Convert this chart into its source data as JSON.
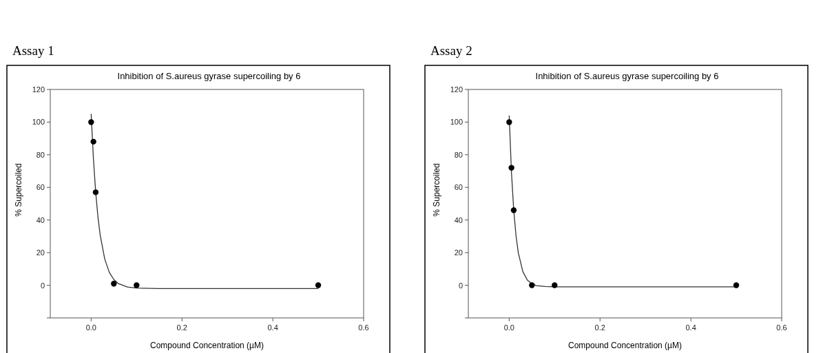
{
  "chart_data": [
    {
      "type": "scatter",
      "title": "Inhibition of S.aureus gyrase supercoiling by 6",
      "xlabel": "Compound Concentration (µM)",
      "ylabel": "% Supercoiled",
      "annotations": [
        "Assay 1"
      ],
      "xlim": [
        -0.09,
        0.6
      ],
      "xticks": [
        {
          "value": 0,
          "label": "0.0"
        },
        {
          "value": 0.2,
          "label": "0.2"
        },
        {
          "value": 0.4,
          "label": "0.4"
        },
        {
          "value": 0.6,
          "label": "0.6"
        }
      ],
      "ylim": [
        -20,
        120
      ],
      "yticks": [
        {
          "value": -20,
          "label": null
        },
        0,
        20,
        40,
        60,
        80,
        100,
        120
      ],
      "grid": false,
      "series": [
        {
          "type": "line",
          "color": "#333333",
          "line_style": "solid",
          "x": [
            0,
            0.005,
            0.01,
            0.015,
            0.02,
            0.03,
            0.04,
            0.05,
            0.06,
            0.08,
            0.1,
            0.15,
            0.2,
            0.3,
            0.5
          ],
          "values": [
            105,
            77.5,
            57,
            41.8,
            30.6,
            16,
            7.9,
            3.5,
            1,
            -1.1,
            -1.7,
            -2,
            -2,
            -2,
            -2
          ]
        },
        {
          "color": "#000000",
          "marker": "circle",
          "x": [
            0,
            0.005,
            0.01,
            0.05,
            0.1,
            0.5
          ],
          "values": [
            100,
            88,
            57,
            1,
            0,
            0
          ]
        }
      ]
    },
    {
      "type": "scatter",
      "title": "Inhibition of S.aureus gyrase supercoiling by 6",
      "xlabel": "Compound Concentration (µM)",
      "ylabel": "% Supercoiled",
      "annotations": [
        "Assay 2"
      ],
      "xlim": [
        -0.09,
        0.6
      ],
      "xticks": [
        {
          "value": 0,
          "label": "0.0"
        },
        {
          "value": 0.2,
          "label": "0.2"
        },
        {
          "value": 0.4,
          "label": "0.4"
        },
        {
          "value": 0.6,
          "label": "0.6"
        }
      ],
      "ylim": [
        -20,
        120
      ],
      "yticks": [
        {
          "value": -20,
          "label": null
        },
        0,
        20,
        40,
        60,
        80,
        100,
        120
      ],
      "grid": false,
      "series": [
        {
          "type": "line",
          "color": "#333333",
          "line_style": "solid",
          "x": [
            0,
            0.005,
            0.01,
            0.015,
            0.02,
            0.03,
            0.04,
            0.05,
            0.06,
            0.08,
            0.1,
            0.2,
            0.3,
            0.5
          ],
          "values": [
            104,
            69.2,
            46,
            30.4,
            20,
            8.4,
            3.2,
            0.9,
            -0.2,
            -0.8,
            -1,
            -1,
            -1,
            -1
          ]
        },
        {
          "color": "#000000",
          "marker": "circle",
          "x": [
            0,
            0.005,
            0.01,
            0.05,
            0.1,
            0.5
          ],
          "values": [
            100,
            72,
            46,
            0,
            0,
            0
          ]
        }
      ]
    }
  ]
}
